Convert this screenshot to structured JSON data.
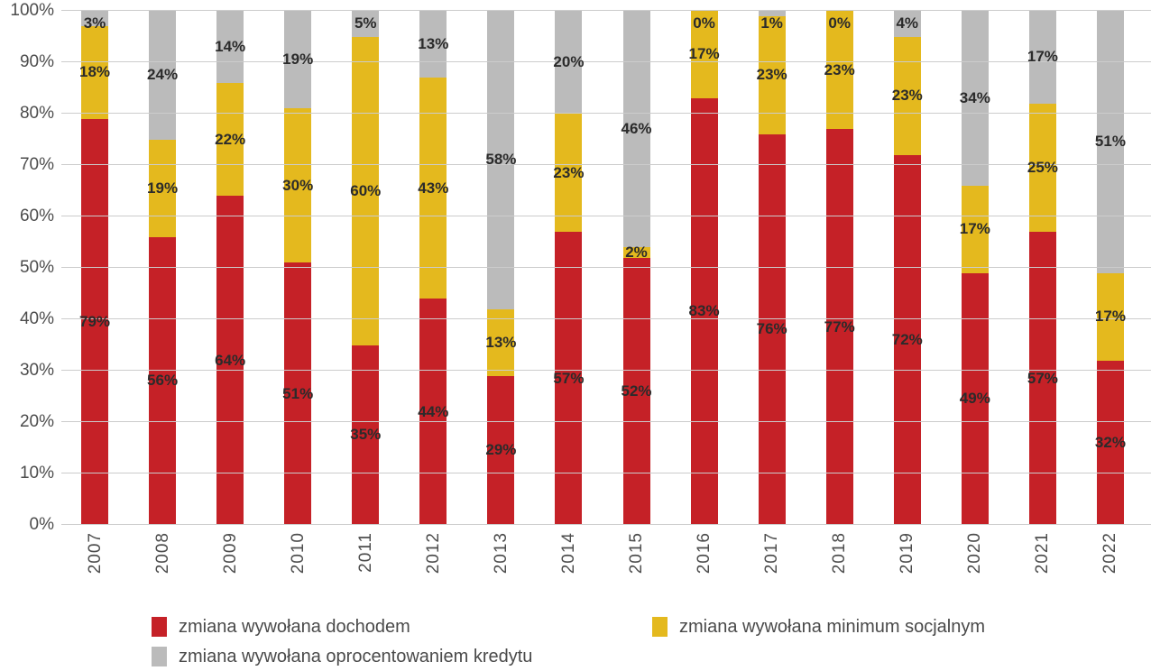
{
  "chart_data": {
    "type": "bar",
    "stacked": true,
    "units": "percent",
    "categories": [
      "2007",
      "2008",
      "2009",
      "2010",
      "2011",
      "2012",
      "2013",
      "2014",
      "2015",
      "2016",
      "2017",
      "2018",
      "2019",
      "2020",
      "2021",
      "2022"
    ],
    "series": [
      {
        "name": "zmiana wywołana dochodem",
        "color": "#C52127",
        "values": [
          79,
          56,
          64,
          51,
          35,
          44,
          29,
          57,
          52,
          83,
          76,
          77,
          72,
          49,
          57,
          32
        ]
      },
      {
        "name": "zmiana wywołana minimum socjalnym",
        "color": "#E4B91E",
        "values": [
          18,
          19,
          22,
          30,
          60,
          43,
          13,
          23,
          2,
          17,
          23,
          23,
          23,
          17,
          25,
          17
        ]
      },
      {
        "name": "zmiana wywołana oprocentowaniem kredytu",
        "color": "#BBBBBB",
        "values": [
          3,
          24,
          14,
          19,
          5,
          13,
          58,
          20,
          46,
          0,
          1,
          0,
          4,
          34,
          17,
          51
        ]
      }
    ],
    "y_axis": {
      "min": 0,
      "max": 100,
      "step": 10,
      "tick_labels": [
        "0%",
        "10%",
        "20%",
        "30%",
        "40%",
        "50%",
        "60%",
        "70%",
        "80%",
        "90%",
        "100%"
      ]
    },
    "grid": true,
    "legend_position": "bottom",
    "bar_label_format": "{value}%"
  },
  "colors": {
    "background": "#FFFFFF",
    "grid": "#CCCCCC",
    "axis_text": "#4D4D4D",
    "bar_label_text": "#2B2B2B",
    "legend_text": "#4A4A4A"
  }
}
